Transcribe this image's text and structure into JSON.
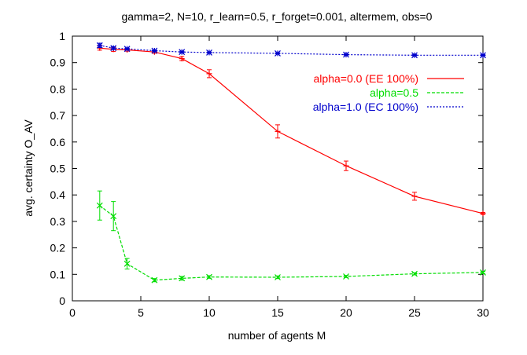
{
  "chart_data": {
    "type": "line",
    "title": "gamma=2, N=10, r_learn=0.5, r_forget=0.001, altermem, obs=0",
    "xlabel": "number of agents M",
    "ylabel": "avg. certainty O_AV",
    "xlim": [
      0,
      30
    ],
    "ylim": [
      0,
      1
    ],
    "xticks": [
      0,
      5,
      10,
      15,
      20,
      25,
      30
    ],
    "yticks": [
      0,
      0.1,
      0.2,
      0.3,
      0.4,
      0.5,
      0.6,
      0.7,
      0.8,
      0.9,
      1
    ],
    "grid": false,
    "legend_position": "top-right",
    "series": [
      {
        "name": "alpha=0.0 (EE 100%)",
        "color": "#ff0000",
        "line_style": "solid",
        "marker": "plus",
        "x": [
          2,
          3,
          4,
          6,
          8,
          10,
          15,
          20,
          25,
          30
        ],
        "y": [
          0.955,
          0.95,
          0.948,
          0.94,
          0.915,
          0.858,
          0.64,
          0.51,
          0.395,
          0.33
        ],
        "err": [
          0.008,
          0.008,
          0.005,
          0.005,
          0.008,
          0.015,
          0.025,
          0.018,
          0.015,
          0.004
        ]
      },
      {
        "name": "alpha=0.5",
        "color": "#00dd00",
        "line_style": "dashed",
        "marker": "x",
        "x": [
          2,
          3,
          4,
          6,
          8,
          10,
          15,
          20,
          25,
          30
        ],
        "y": [
          0.36,
          0.32,
          0.14,
          0.078,
          0.085,
          0.09,
          0.089,
          0.092,
          0.102,
          0.107
        ],
        "err": [
          0.055,
          0.055,
          0.02,
          0.006,
          0.007,
          0.005,
          0.005,
          0.004,
          0.004,
          0.004
        ]
      },
      {
        "name": "alpha=1.0 (EC 100%)",
        "color": "#0000cc",
        "line_style": "dotted",
        "marker": "asterisk",
        "x": [
          2,
          3,
          4,
          6,
          8,
          10,
          15,
          20,
          25,
          30
        ],
        "y": [
          0.965,
          0.955,
          0.952,
          0.945,
          0.94,
          0.938,
          0.935,
          0.93,
          0.928,
          0.928
        ],
        "err": [
          0.008,
          0.005,
          0.003,
          0.003,
          0.003,
          0.002,
          0.002,
          0.002,
          0.002,
          0.002
        ]
      }
    ]
  }
}
